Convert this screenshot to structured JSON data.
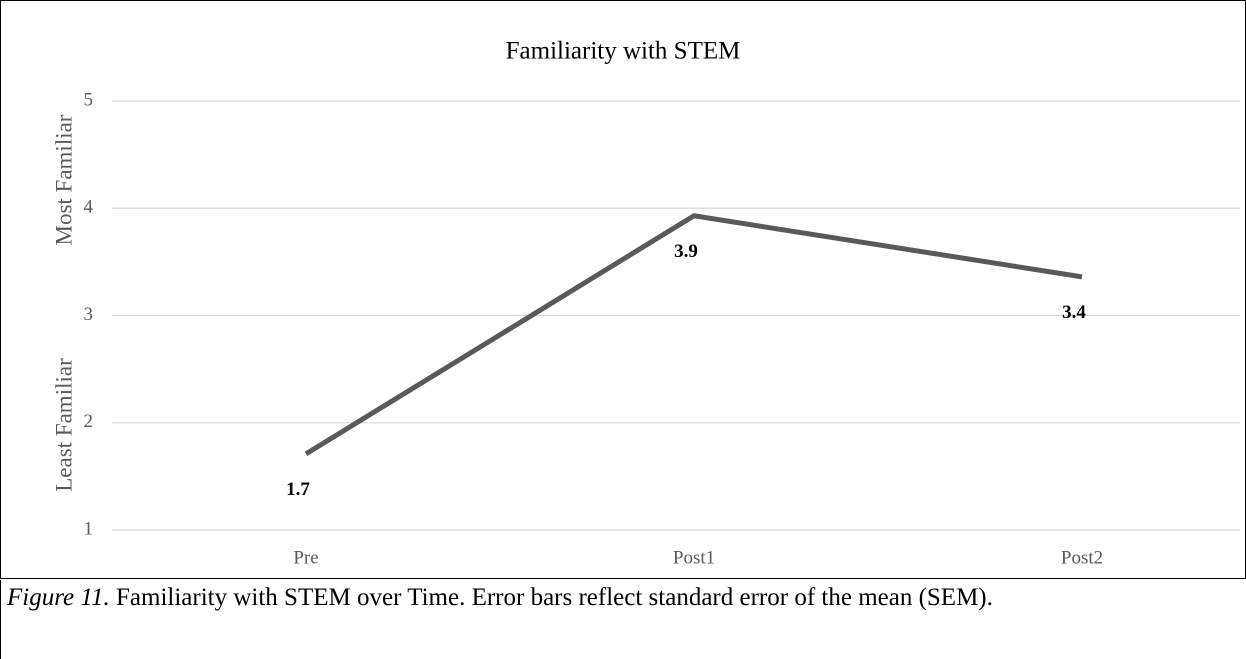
{
  "chart_data": {
    "type": "line",
    "title": "Familiarity with STEM",
    "categories": [
      "Pre",
      "Post1",
      "Post2"
    ],
    "values": [
      1.71,
      3.93,
      3.36
    ],
    "value_labels": [
      "1.7",
      "3.9",
      "3.4"
    ],
    "color": "#595959",
    "ylim": [
      1,
      5
    ],
    "yticks": [
      1,
      2,
      3,
      4,
      5
    ],
    "grid": true,
    "y_axis_labels": [
      "Least Familiar",
      "Most Familiar"
    ]
  },
  "caption": {
    "label": "Figure 11.",
    "text": "Familiarity with STEM over Time. Error bars reflect standard error of the mean (SEM)."
  }
}
